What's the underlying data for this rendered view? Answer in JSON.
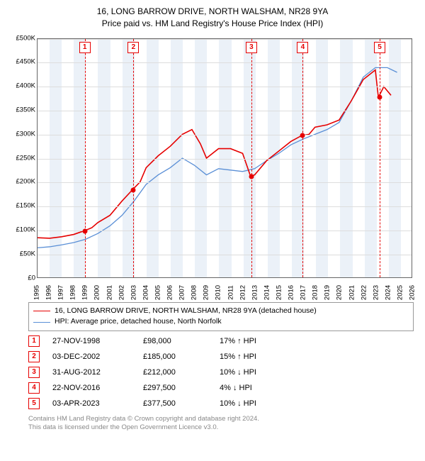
{
  "title_line1": "16, LONG BARROW DRIVE, NORTH WALSHAM, NR28 9YA",
  "title_line2": "Price paid vs. HM Land Registry's House Price Index (HPI)",
  "chart": {
    "type": "line",
    "xlim": [
      1995,
      2026
    ],
    "ylim": [
      0,
      500000
    ],
    "ytick_step": 50000,
    "yticks": [
      "£0",
      "£50K",
      "£100K",
      "£150K",
      "£200K",
      "£250K",
      "£300K",
      "£350K",
      "£400K",
      "£450K",
      "£500K"
    ],
    "xticks": [
      1995,
      1996,
      1997,
      1998,
      1999,
      2000,
      2001,
      2002,
      2003,
      2004,
      2005,
      2006,
      2007,
      2008,
      2009,
      2010,
      2011,
      2012,
      2013,
      2014,
      2015,
      2016,
      2017,
      2018,
      2019,
      2020,
      2021,
      2022,
      2023,
      2024,
      2025,
      2026
    ],
    "grid_color": "#dddddd",
    "band_color": "#ebf1f8",
    "background_color": "#ffffff",
    "series": {
      "property": {
        "label": "16, LONG BARROW DRIVE, NORTH WALSHAM, NR28 9YA (detached house)",
        "color": "#e60000",
        "width": 1.6,
        "data": [
          [
            1995,
            83000
          ],
          [
            1996,
            82000
          ],
          [
            1997,
            85000
          ],
          [
            1998,
            90000
          ],
          [
            1998.9,
            98000
          ],
          [
            1999.5,
            104000
          ],
          [
            2000,
            115000
          ],
          [
            2001,
            130000
          ],
          [
            2002,
            160000
          ],
          [
            2002.92,
            185000
          ],
          [
            2003.5,
            200000
          ],
          [
            2004,
            230000
          ],
          [
            2005,
            255000
          ],
          [
            2006,
            275000
          ],
          [
            2007,
            300000
          ],
          [
            2007.8,
            310000
          ],
          [
            2008.5,
            280000
          ],
          [
            2009,
            250000
          ],
          [
            2010,
            270000
          ],
          [
            2011,
            270000
          ],
          [
            2012,
            260000
          ],
          [
            2012.66,
            212000
          ],
          [
            2013,
            215000
          ],
          [
            2014,
            245000
          ],
          [
            2015,
            265000
          ],
          [
            2016,
            285000
          ],
          [
            2016.9,
            297500
          ],
          [
            2017.5,
            300000
          ],
          [
            2018,
            315000
          ],
          [
            2019,
            320000
          ],
          [
            2020,
            330000
          ],
          [
            2021,
            370000
          ],
          [
            2022,
            415000
          ],
          [
            2023,
            435000
          ],
          [
            2023.25,
            377500
          ],
          [
            2023.7,
            400000
          ],
          [
            2024.3,
            382000
          ]
        ]
      },
      "hpi": {
        "label": "HPI: Average price, detached house, North Norfolk",
        "color": "#5a8fd6",
        "width": 1.3,
        "data": [
          [
            1995,
            62000
          ],
          [
            1996,
            64000
          ],
          [
            1997,
            68000
          ],
          [
            1998,
            73000
          ],
          [
            1999,
            80000
          ],
          [
            2000,
            92000
          ],
          [
            2001,
            108000
          ],
          [
            2002,
            130000
          ],
          [
            2003,
            160000
          ],
          [
            2004,
            195000
          ],
          [
            2005,
            215000
          ],
          [
            2006,
            230000
          ],
          [
            2007,
            250000
          ],
          [
            2008,
            235000
          ],
          [
            2009,
            215000
          ],
          [
            2010,
            228000
          ],
          [
            2011,
            225000
          ],
          [
            2012,
            222000
          ],
          [
            2013,
            228000
          ],
          [
            2014,
            245000
          ],
          [
            2015,
            260000
          ],
          [
            2016,
            278000
          ],
          [
            2017,
            290000
          ],
          [
            2018,
            300000
          ],
          [
            2019,
            310000
          ],
          [
            2020,
            325000
          ],
          [
            2021,
            370000
          ],
          [
            2022,
            420000
          ],
          [
            2023,
            440000
          ],
          [
            2024,
            440000
          ],
          [
            2024.8,
            430000
          ]
        ]
      }
    },
    "transaction_markers": [
      {
        "n": "1",
        "year": 1998.9,
        "price": 98000
      },
      {
        "n": "2",
        "year": 2002.92,
        "price": 185000
      },
      {
        "n": "3",
        "year": 2012.66,
        "price": 212000
      },
      {
        "n": "4",
        "year": 2016.9,
        "price": 297500
      },
      {
        "n": "5",
        "year": 2023.25,
        "price": 377500
      }
    ]
  },
  "transactions": [
    {
      "n": "1",
      "date": "27-NOV-1998",
      "price": "£98,000",
      "pct": "17% ↑ HPI"
    },
    {
      "n": "2",
      "date": "03-DEC-2002",
      "price": "£185,000",
      "pct": "15% ↑ HPI"
    },
    {
      "n": "3",
      "date": "31-AUG-2012",
      "price": "£212,000",
      "pct": "10% ↓ HPI"
    },
    {
      "n": "4",
      "date": "22-NOV-2016",
      "price": "£297,500",
      "pct": "4% ↓ HPI"
    },
    {
      "n": "5",
      "date": "03-APR-2023",
      "price": "£377,500",
      "pct": "10% ↓ HPI"
    }
  ],
  "footer_line1": "Contains HM Land Registry data © Crown copyright and database right 2024.",
  "footer_line2": "This data is licensed under the Open Government Licence v3.0."
}
